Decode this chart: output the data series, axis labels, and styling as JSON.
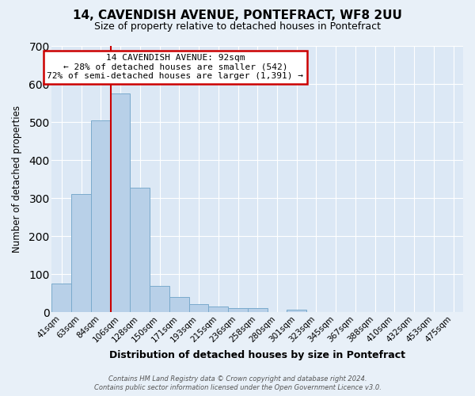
{
  "title": "14, CAVENDISH AVENUE, PONTEFRACT, WF8 2UU",
  "subtitle": "Size of property relative to detached houses in Pontefract",
  "xlabel": "Distribution of detached houses by size in Pontefract",
  "ylabel": "Number of detached properties",
  "bar_labels": [
    "41sqm",
    "63sqm",
    "84sqm",
    "106sqm",
    "128sqm",
    "150sqm",
    "171sqm",
    "193sqm",
    "215sqm",
    "236sqm",
    "258sqm",
    "280sqm",
    "301sqm",
    "323sqm",
    "345sqm",
    "367sqm",
    "388sqm",
    "410sqm",
    "432sqm",
    "453sqm",
    "475sqm"
  ],
  "bar_values": [
    75,
    310,
    505,
    575,
    327,
    68,
    40,
    20,
    15,
    10,
    10,
    0,
    7,
    0,
    0,
    0,
    0,
    0,
    0,
    0,
    0
  ],
  "bar_color": "#b8d0e8",
  "bar_edgecolor": "#7aaacc",
  "vline_x_idx": 2.5,
  "vline_color": "#cc0000",
  "ylim": [
    0,
    700
  ],
  "yticks": [
    0,
    100,
    200,
    300,
    400,
    500,
    600,
    700
  ],
  "annotation_title": "14 CAVENDISH AVENUE: 92sqm",
  "annotation_line1": "← 28% of detached houses are smaller (542)",
  "annotation_line2": "72% of semi-detached houses are larger (1,391) →",
  "annotation_box_color": "#ffffff",
  "annotation_box_edgecolor": "#cc0000",
  "footer_line1": "Contains HM Land Registry data © Crown copyright and database right 2024.",
  "footer_line2": "Contains public sector information licensed under the Open Government Licence v3.0.",
  "background_color": "#e8f0f8",
  "plot_background_color": "#dce8f5",
  "title_fontsize": 11,
  "subtitle_fontsize": 9
}
